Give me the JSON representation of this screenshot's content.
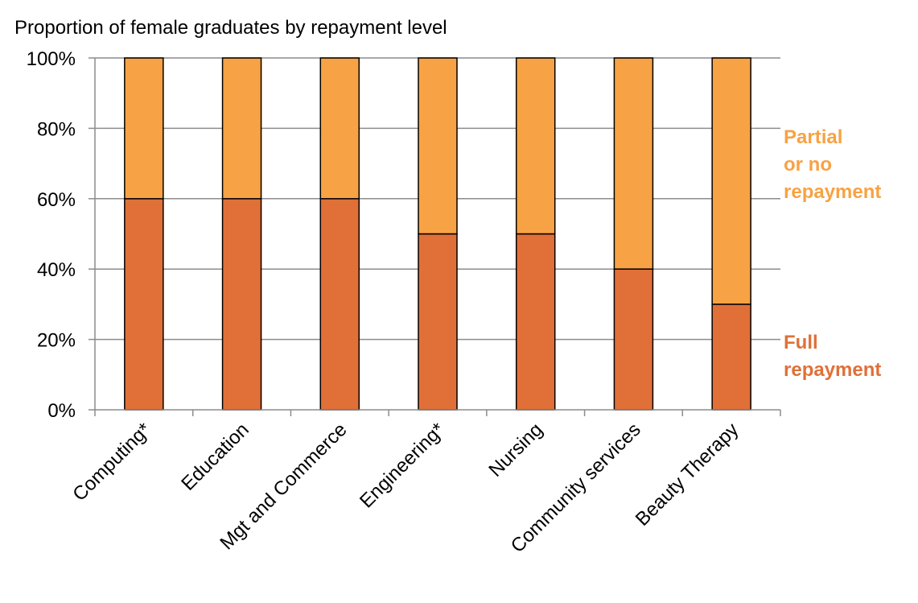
{
  "chart_data": {
    "type": "bar",
    "stacked": true,
    "title": "Proportion of female graduates by repayment level",
    "categories": [
      "Computing*",
      "Education",
      "Mgt and Commerce",
      "Engineering*",
      "Nursing",
      "Community services",
      "Beauty Therapy"
    ],
    "series": [
      {
        "name": "Full repayment",
        "label_lines": [
          "Full",
          "repayment"
        ],
        "color": "#e07038",
        "values": [
          60,
          60,
          60,
          50,
          50,
          40,
          30
        ]
      },
      {
        "name": "Partial or no repayment",
        "label_lines": [
          "Partial",
          "or no",
          "repayment"
        ],
        "color": "#f7a244",
        "values": [
          40,
          40,
          40,
          50,
          50,
          60,
          70
        ]
      }
    ],
    "yaxis": {
      "ticks": [
        0,
        20,
        40,
        60,
        80,
        100
      ],
      "tick_labels": [
        "0%",
        "20%",
        "40%",
        "60%",
        "80%",
        "100%"
      ],
      "ylim": [
        0,
        100
      ]
    },
    "xlabel": "",
    "ylabel": "",
    "grid": true,
    "gridline_color": "#8c8c8c",
    "legend": "right"
  }
}
